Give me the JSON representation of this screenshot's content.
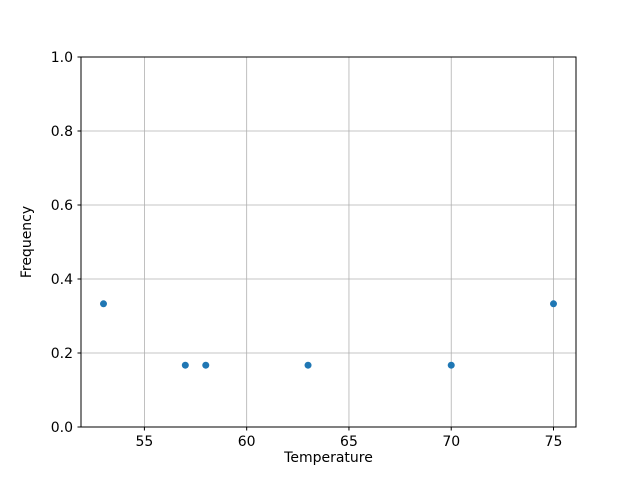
{
  "figure": {
    "background": "#ffffff"
  },
  "chart_data": {
    "type": "scatter",
    "title": "",
    "xlabel": "Temperature",
    "ylabel": "Frequency",
    "points": [
      {
        "x": 53,
        "y": 0.333
      },
      {
        "x": 57,
        "y": 0.167
      },
      {
        "x": 58,
        "y": 0.167
      },
      {
        "x": 63,
        "y": 0.167
      },
      {
        "x": 70,
        "y": 0.167
      },
      {
        "x": 75,
        "y": 0.333
      }
    ],
    "xlim": [
      51.9,
      76.1
    ],
    "ylim": [
      0.0,
      1.0
    ],
    "xticks": [
      55,
      60,
      65,
      70,
      75
    ],
    "xtick_labels": [
      "55",
      "60",
      "65",
      "70",
      "75"
    ],
    "yticks": [
      0.0,
      0.2,
      0.4,
      0.6,
      0.8,
      1.0
    ],
    "ytick_labels": [
      "0.0",
      "0.2",
      "0.4",
      "0.6",
      "0.8",
      "1.0"
    ],
    "grid": true,
    "legend": null,
    "marker": {
      "shape": "circle",
      "color": "#1f77b4",
      "radius": 3.5
    },
    "colors": {
      "grid": "#b0b0b0",
      "spine": "#000000",
      "tick": "#000000",
      "text": "#000000"
    }
  }
}
